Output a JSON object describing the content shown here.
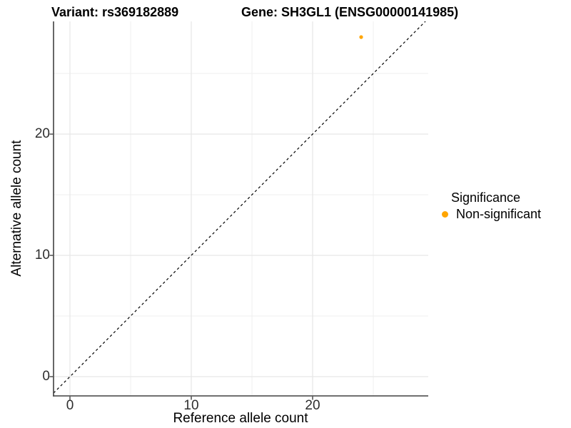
{
  "header": {
    "variant_title": "Variant: rs369182889",
    "gene_title": "Gene: SH3GL1 (ENSG00000141985)"
  },
  "chart_data": {
    "type": "scatter",
    "title": "Variant: rs369182889  /  Gene: SH3GL1 (ENSG00000141985)",
    "xlabel": "Reference allele count",
    "ylabel": "Alternative allele count",
    "x_ticks": [
      0,
      10,
      20
    ],
    "y_ticks": [
      0,
      10,
      20
    ],
    "x_minor_ticks": [
      5,
      15,
      25
    ],
    "y_minor_ticks": [
      5,
      15,
      25
    ],
    "xlim": [
      -1.4,
      29.5
    ],
    "ylim": [
      -1.6,
      29.3
    ],
    "grid": "on",
    "legend_position": "right",
    "points": [
      {
        "x": 24,
        "y": 28,
        "series": "Non-significant"
      }
    ],
    "reference_line": {
      "slope": 1,
      "intercept": 0,
      "style": "dashed",
      "color": "#000000"
    }
  },
  "legend": {
    "title": "Significance",
    "items": [
      {
        "label": "Non-significant",
        "color": "#FFA500"
      }
    ]
  },
  "colors": {
    "point": "#FFA500",
    "grid_major": "#E7E7E7",
    "grid_minor": "#EFEFEF",
    "axis_line": "#404040",
    "tick_label": "#2e2e2e",
    "background": "#ffffff"
  }
}
